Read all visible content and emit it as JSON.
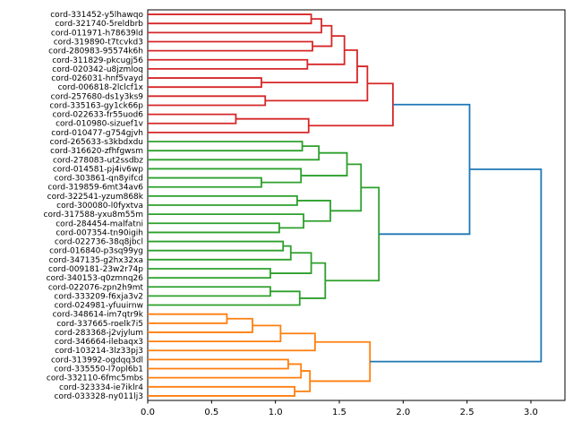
{
  "chart_data": {
    "type": "dendrogram",
    "orientation": "left-labels-horizontal-links",
    "title": "",
    "xlabel": "",
    "ylabel": "",
    "x_ticks": [
      0.0,
      0.5,
      1.0,
      1.5,
      2.0,
      2.5,
      3.0
    ],
    "xlim": [
      0.0,
      3.2666
    ],
    "grid": false,
    "colors": {
      "cluster_red": "#d62728",
      "cluster_green": "#2ca02c",
      "cluster_orange": "#ff7f0e",
      "link_blue": "#1f77b4",
      "axis": "#000000",
      "background": "#ffffff"
    },
    "leaves": [
      "cord-331452-y5lhawqo",
      "cord-321740-5reldbrb",
      "cord-011971-h78639ld",
      "cord-319890-t7tcvkd3",
      "cord-280983-95574k6h",
      "cord-311829-pkcugj56",
      "cord-020342-u8jzmloq",
      "cord-026031-hnf5vayd",
      "cord-006818-2lclcf1x",
      "cord-257680-ds1y3ks9",
      "cord-335163-gy1ck66p",
      "cord-022633-fr55uod6",
      "cord-010980-sizuef1v",
      "cord-010477-g754gjvh",
      "cord-265633-s3kbdxdu",
      "cord-316620-zfhfgwsm",
      "cord-278083-ut2ssdbz",
      "cord-014581-pj4iv6wp",
      "cord-303861-qn8yifcd",
      "cord-319859-6mt34av6",
      "cord-322541-yzum868k",
      "cord-300080-l0fyxtva",
      "cord-317588-yxu8m55m",
      "cord-284454-malfatni",
      "cord-007354-tn90igih",
      "cord-022736-38q8jbcl",
      "cord-016840-p3sq99yg",
      "cord-347135-g2hx32xa",
      "cord-009181-23w2r74p",
      "cord-340153-q0zmnq26",
      "cord-022076-zpn2h9mt",
      "cord-333209-f6xja3v2",
      "cord-024981-yfuuirnw",
      "cord-348614-im7qtr9k",
      "cord-337665-roelk7i5",
      "cord-283368-j2vjylum",
      "cord-346664-ilebaqx3",
      "cord-103214-3lz33pj3",
      "cord-313992-ogdqq3dl",
      "cord-335550-l7opl6b1",
      "cord-332110-6fmc5mbs",
      "cord-323334-ie7iklr4",
      "cord-033328-ny011lj3"
    ],
    "tree": {
      "d": 3.08,
      "color": "#1f77b4",
      "children": [
        {
          "d": 2.52,
          "children": [
            {
              "d": 1.92,
              "color": "#d62728",
              "children": [
                {
                  "d": 1.72,
                  "children": [
                    {
                      "d": 1.64,
                      "children": [
                        {
                          "d": 1.54,
                          "children": [
                            {
                              "d": 1.44,
                              "children": [
                                {
                                  "d": 1.36,
                                  "children": [
                                    {
                                      "d": 1.28,
                                      "children": [
                                        {
                                          "leaf": 0
                                        },
                                        {
                                          "leaf": 1
                                        }
                                      ]
                                    },
                                    {
                                      "leaf": 2
                                    }
                                  ]
                                },
                                {
                                  "d": 1.29,
                                  "children": [
                                    {
                                      "leaf": 3
                                    },
                                    {
                                      "leaf": 4
                                    }
                                  ]
                                }
                              ]
                            },
                            {
                              "d": 1.25,
                              "children": [
                                {
                                  "leaf": 5
                                },
                                {
                                  "leaf": 6
                                }
                              ]
                            }
                          ]
                        },
                        {
                          "d": 0.89,
                          "children": [
                            {
                              "leaf": 7
                            },
                            {
                              "leaf": 8
                            }
                          ]
                        }
                      ]
                    },
                    {
                      "d": 0.92,
                      "children": [
                        {
                          "leaf": 9
                        },
                        {
                          "leaf": 10
                        }
                      ]
                    }
                  ]
                },
                {
                  "d": 1.26,
                  "children": [
                    {
                      "d": 0.69,
                      "children": [
                        {
                          "leaf": 11
                        },
                        {
                          "leaf": 12
                        }
                      ]
                    },
                    {
                      "leaf": 13
                    }
                  ]
                }
              ]
            },
            {
              "d": 1.81,
              "color": "#2ca02c",
              "children": [
                {
                  "d": 1.67,
                  "children": [
                    {
                      "d": 1.56,
                      "children": [
                        {
                          "d": 1.34,
                          "children": [
                            {
                              "d": 1.21,
                              "children": [
                                {
                                  "leaf": 14
                                },
                                {
                                  "leaf": 15
                                }
                              ]
                            },
                            {
                              "leaf": 16
                            }
                          ]
                        },
                        {
                          "d": 1.2,
                          "children": [
                            {
                              "leaf": 17
                            },
                            {
                              "d": 0.89,
                              "children": [
                                {
                                  "leaf": 18
                                },
                                {
                                  "leaf": 19
                                }
                              ]
                            }
                          ]
                        }
                      ]
                    },
                    {
                      "d": 1.43,
                      "children": [
                        {
                          "d": 1.17,
                          "children": [
                            {
                              "leaf": 20
                            },
                            {
                              "leaf": 21
                            }
                          ]
                        },
                        {
                          "d": 1.22,
                          "children": [
                            {
                              "leaf": 22
                            },
                            {
                              "d": 1.03,
                              "children": [
                                {
                                  "leaf": 23
                                },
                                {
                                  "leaf": 24
                                }
                              ]
                            }
                          ]
                        }
                      ]
                    }
                  ]
                },
                {
                  "d": 1.39,
                  "children": [
                    {
                      "d": 1.28,
                      "children": [
                        {
                          "d": 1.12,
                          "children": [
                            {
                              "d": 1.06,
                              "children": [
                                {
                                  "leaf": 25
                                },
                                {
                                  "leaf": 26
                                }
                              ]
                            },
                            {
                              "leaf": 27
                            }
                          ]
                        },
                        {
                          "d": 0.96,
                          "children": [
                            {
                              "leaf": 28
                            },
                            {
                              "leaf": 29
                            }
                          ]
                        }
                      ]
                    },
                    {
                      "d": 1.19,
                      "children": [
                        {
                          "d": 0.96,
                          "children": [
                            {
                              "leaf": 30
                            },
                            {
                              "leaf": 31
                            }
                          ]
                        },
                        {
                          "leaf": 32
                        }
                      ]
                    }
                  ]
                }
              ]
            }
          ]
        },
        {
          "d": 1.74,
          "color": "#ff7f0e",
          "children": [
            {
              "d": 1.31,
              "children": [
                {
                  "d": 1.04,
                  "children": [
                    {
                      "d": 0.82,
                      "children": [
                        {
                          "d": 0.62,
                          "children": [
                            {
                              "leaf": 33
                            },
                            {
                              "leaf": 34
                            }
                          ]
                        },
                        {
                          "leaf": 35
                        }
                      ]
                    },
                    {
                      "leaf": 36
                    }
                  ]
                },
                {
                  "leaf": 37
                }
              ]
            },
            {
              "d": 1.27,
              "children": [
                {
                  "d": 1.2,
                  "children": [
                    {
                      "d": 1.1,
                      "children": [
                        {
                          "leaf": 38
                        },
                        {
                          "leaf": 39
                        }
                      ]
                    },
                    {
                      "leaf": 40
                    }
                  ]
                },
                {
                  "d": 1.15,
                  "children": [
                    {
                      "leaf": 41
                    },
                    {
                      "leaf": 42
                    }
                  ]
                }
              ]
            }
          ]
        }
      ]
    }
  }
}
